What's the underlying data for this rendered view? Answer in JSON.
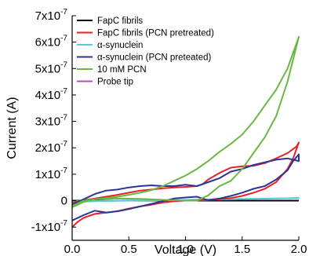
{
  "chart_data": {
    "type": "line",
    "title": "",
    "xlabel": "Voltage (V)",
    "ylabel": "Current (A)",
    "xlim": [
      0.0,
      2.0
    ],
    "ylim": [
      -1.5e-07,
      7e-07
    ],
    "x_ticks": [
      {
        "value": 0.0,
        "label": "0.0"
      },
      {
        "value": 0.5,
        "label": "0.5"
      },
      {
        "value": 1.0,
        "label": "1.0"
      },
      {
        "value": 1.5,
        "label": "1.5"
      },
      {
        "value": 2.0,
        "label": "2.0"
      }
    ],
    "y_ticks": [
      {
        "value": -1e-07,
        "mantissa": "-1x10",
        "exp": "-7"
      },
      {
        "value": 0,
        "mantissa": "0",
        "exp": ""
      },
      {
        "value": 1e-07,
        "mantissa": "1x10",
        "exp": "-7"
      },
      {
        "value": 2e-07,
        "mantissa": "2x10",
        "exp": "-7"
      },
      {
        "value": 3e-07,
        "mantissa": "3x10",
        "exp": "-7"
      },
      {
        "value": 4e-07,
        "mantissa": "4x10",
        "exp": "-7"
      },
      {
        "value": 5e-07,
        "mantissa": "5x10",
        "exp": "-7"
      },
      {
        "value": 6e-07,
        "mantissa": "6x10",
        "exp": "-7"
      },
      {
        "value": 7e-07,
        "mantissa": "7x10",
        "exp": "-7"
      }
    ],
    "grid": false,
    "legend_position": "top-left",
    "series": [
      {
        "name": "FapC fibrils",
        "color": "#000000",
        "points": [
          [
            0.0,
            0
          ],
          [
            0.5,
            0
          ],
          [
            1.0,
            0
          ],
          [
            1.5,
            0
          ],
          [
            2.0,
            0
          ]
        ]
      },
      {
        "name": "FapC fibrils (PCN pretreated)",
        "color": "#e8202a",
        "points": [
          [
            0.0,
            -1e-07
          ],
          [
            0.05,
            -8e-08
          ],
          [
            0.1,
            -6.5e-08
          ],
          [
            0.2,
            -5e-08
          ],
          [
            0.3,
            -4.5e-08
          ],
          [
            0.4,
            -4e-08
          ],
          [
            0.5,
            -3e-08
          ],
          [
            0.6,
            -2.2e-08
          ],
          [
            0.7,
            -1.5e-08
          ],
          [
            0.8,
            -7e-09
          ],
          [
            0.9,
            -2e-09
          ],
          [
            1.0,
            0.0
          ],
          [
            1.1,
            1e-09
          ],
          [
            1.2,
            2e-09
          ],
          [
            1.3,
            5e-09
          ],
          [
            1.4,
            1e-08
          ],
          [
            1.5,
            1.8e-08
          ],
          [
            1.6,
            3e-08
          ],
          [
            1.7,
            4.5e-08
          ],
          [
            1.8,
            7e-08
          ],
          [
            1.9,
            1.2e-07
          ],
          [
            1.95,
            1.6e-07
          ],
          [
            2.0,
            2.2e-07
          ],
          [
            1.98,
            2.05e-07
          ],
          [
            1.9,
            1.8e-07
          ],
          [
            1.8,
            1.6e-07
          ],
          [
            1.7,
            1.42e-07
          ],
          [
            1.6,
            1.32e-07
          ],
          [
            1.5,
            1.3e-07
          ],
          [
            1.4,
            1.25e-07
          ],
          [
            1.3,
            1.05e-07
          ],
          [
            1.2,
            8e-08
          ],
          [
            1.15,
            6.2e-08
          ],
          [
            1.1,
            5.5e-08
          ],
          [
            1.0,
            5.2e-08
          ],
          [
            0.9,
            5e-08
          ],
          [
            0.8,
            4.7e-08
          ],
          [
            0.7,
            4.2e-08
          ],
          [
            0.6,
            3.8e-08
          ],
          [
            0.5,
            3e-08
          ],
          [
            0.4,
            2.2e-08
          ],
          [
            0.3,
            1.5e-08
          ],
          [
            0.2,
            8e-09
          ],
          [
            0.1,
            2e-09
          ],
          [
            0.0,
            -8e-09
          ]
        ]
      },
      {
        "name": "α-synuclein",
        "color": "#5bc8d8",
        "points": [
          [
            0.0,
            -5e-09
          ],
          [
            0.2,
            -2e-09
          ],
          [
            0.5,
            0.0
          ],
          [
            1.0,
            2e-09
          ],
          [
            1.5,
            6e-09
          ],
          [
            2.0,
            1e-08
          ],
          [
            1.5,
            7e-09
          ],
          [
            1.0,
            3e-09
          ],
          [
            0.5,
            1e-09
          ],
          [
            0.0,
            -2e-09
          ]
        ]
      },
      {
        "name": "α-synuclein (PCN preteated)",
        "color": "#2d3594",
        "points": [
          [
            0.0,
            -7.5e-08
          ],
          [
            0.1,
            -5.5e-08
          ],
          [
            0.2,
            -3.8e-08
          ],
          [
            0.3,
            -4.5e-08
          ],
          [
            0.4,
            -4e-08
          ],
          [
            0.5,
            -3.2e-08
          ],
          [
            0.6,
            -2.2e-08
          ],
          [
            0.7,
            -1.2e-08
          ],
          [
            0.8,
            -2e-09
          ],
          [
            0.9,
            8e-09
          ],
          [
            1.0,
            1.2e-08
          ],
          [
            1.1,
            1.5e-08
          ],
          [
            1.15,
            8e-09
          ],
          [
            1.2,
            2e-09
          ],
          [
            1.3,
            8e-09
          ],
          [
            1.4,
            1.8e-08
          ],
          [
            1.5,
            3e-08
          ],
          [
            1.6,
            4.5e-08
          ],
          [
            1.7,
            5.5e-08
          ],
          [
            1.8,
            8e-08
          ],
          [
            1.9,
            1.15e-07
          ],
          [
            1.95,
            1.5e-07
          ],
          [
            2.0,
            1.75e-07
          ],
          [
            2.0,
            1.5e-07
          ],
          [
            1.9,
            1.6e-07
          ],
          [
            1.8,
            1.55e-07
          ],
          [
            1.7,
            1.45e-07
          ],
          [
            1.6,
            1.35e-07
          ],
          [
            1.5,
            1.2e-07
          ],
          [
            1.4,
            1.1e-07
          ],
          [
            1.3,
            8.5e-08
          ],
          [
            1.2,
            7e-08
          ],
          [
            1.1,
            5.5e-08
          ],
          [
            1.0,
            6e-08
          ],
          [
            0.9,
            5.5e-08
          ],
          [
            0.8,
            5.5e-08
          ],
          [
            0.7,
            5.8e-08
          ],
          [
            0.6,
            5.5e-08
          ],
          [
            0.5,
            5e-08
          ],
          [
            0.4,
            4.2e-08
          ],
          [
            0.3,
            3.8e-08
          ],
          [
            0.2,
            2.5e-08
          ],
          [
            0.1,
            5e-09
          ],
          [
            0.0,
            -1.5e-08
          ]
        ]
      },
      {
        "name": "10 mM PCN",
        "color": "#6ab843",
        "points": [
          [
            0.0,
            -2.5e-08
          ],
          [
            0.1,
            -5e-09
          ],
          [
            0.2,
            5e-09
          ],
          [
            0.4,
            8e-09
          ],
          [
            0.6,
            7e-09
          ],
          [
            0.8,
            3e-09
          ],
          [
            1.0,
            0.0
          ],
          [
            1.1,
            0.0
          ],
          [
            1.2,
            2e-08
          ],
          [
            1.3,
            5.5e-08
          ],
          [
            1.4,
            7.5e-08
          ],
          [
            1.5,
            1.2e-07
          ],
          [
            1.6,
            1.8e-07
          ],
          [
            1.7,
            2.4e-07
          ],
          [
            1.8,
            3.2e-07
          ],
          [
            1.9,
            4.5e-07
          ],
          [
            2.0,
            6.2e-07
          ],
          [
            1.9,
            5e-07
          ],
          [
            1.8,
            4.2e-07
          ],
          [
            1.7,
            3.6e-07
          ],
          [
            1.6,
            3e-07
          ],
          [
            1.5,
            2.5e-07
          ],
          [
            1.4,
            2.15e-07
          ],
          [
            1.3,
            1.85e-07
          ],
          [
            1.2,
            1.5e-07
          ],
          [
            1.1,
            1.2e-07
          ],
          [
            1.0,
            9.5e-08
          ],
          [
            0.9,
            7.5e-08
          ],
          [
            0.8,
            5.5e-08
          ],
          [
            0.7,
            4e-08
          ],
          [
            0.6,
            3e-08
          ],
          [
            0.5,
            2.2e-08
          ],
          [
            0.4,
            1.5e-08
          ],
          [
            0.3,
            1e-08
          ],
          [
            0.2,
            5e-09
          ],
          [
            0.1,
            0.0
          ],
          [
            0.0,
            -2e-08
          ]
        ]
      },
      {
        "name": "Probe tip",
        "color": "#b44fb0",
        "points": [
          [
            0.0,
            0
          ],
          [
            2.0,
            0
          ]
        ]
      }
    ]
  }
}
